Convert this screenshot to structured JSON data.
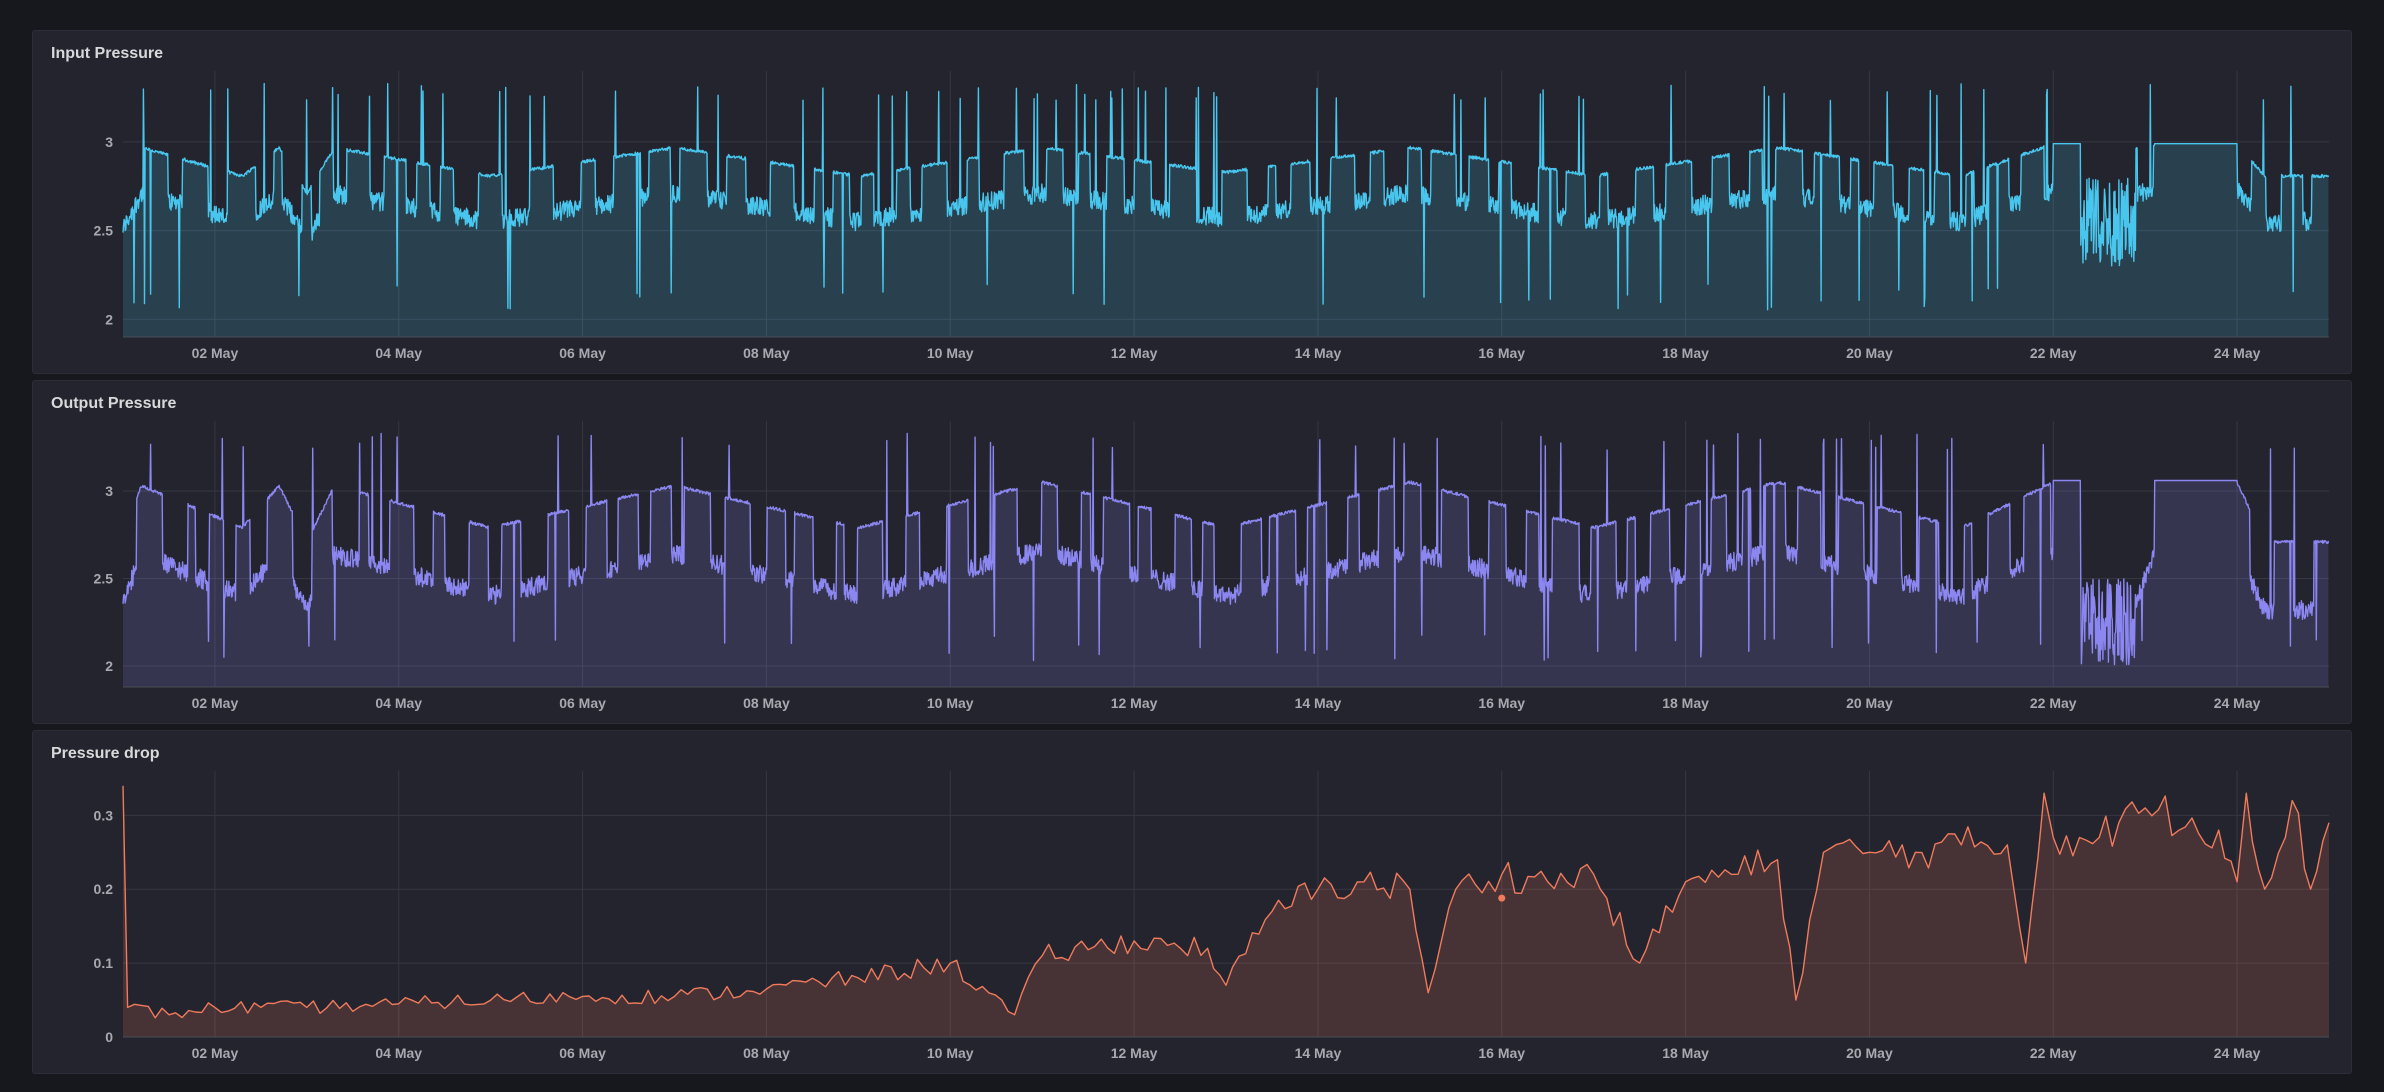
{
  "colors": {
    "background": "#17181d",
    "panel": "#23242d",
    "grid": "#363742",
    "input": "#48c6ee",
    "output": "#8b86f0",
    "drop": "#f07a5c"
  },
  "chart_data": [
    {
      "type": "line",
      "title": "Input Pressure",
      "x_ticks": [
        "02 May",
        "04 May",
        "06 May",
        "08 May",
        "10 May",
        "12 May",
        "14 May",
        "16 May",
        "18 May",
        "20 May",
        "22 May",
        "24 May"
      ],
      "y_ticks": [
        "2",
        "2.5",
        "3"
      ],
      "ylim": [
        1.9,
        3.4
      ],
      "xlim_days": [
        1.0,
        25.0
      ],
      "fill": true,
      "series": [
        {
          "color": "#48c6ee",
          "profile": "square-wave oscillation between ~2.5 and ~3.0 with spikes to ~3.3 and dips to ~2.0",
          "anchors": [
            [
              1.0,
              2.45
            ],
            [
              1.2,
              2.95
            ],
            [
              2.3,
              2.55
            ],
            [
              2.7,
              2.95
            ],
            [
              3.0,
              2.3
            ],
            [
              3.3,
              2.95
            ],
            [
              5.0,
              2.55
            ],
            [
              7.0,
              2.95
            ],
            [
              9.0,
              2.55
            ],
            [
              11.0,
              2.95
            ],
            [
              13.0,
              2.6
            ],
            [
              15.0,
              2.95
            ],
            [
              17.0,
              2.55
            ],
            [
              19.0,
              2.95
            ],
            [
              21.0,
              2.55
            ],
            [
              22.0,
              3.0
            ],
            [
              22.4,
              2.3
            ],
            [
              22.9,
              2.95
            ],
            [
              23.1,
              3.0
            ],
            [
              24.0,
              3.0
            ],
            [
              24.3,
              2.55
            ],
            [
              25.0,
              2.55
            ]
          ]
        }
      ]
    },
    {
      "type": "line",
      "title": "Output Pressure",
      "x_ticks": [
        "02 May",
        "04 May",
        "06 May",
        "08 May",
        "10 May",
        "12 May",
        "14 May",
        "16 May",
        "18 May",
        "20 May",
        "22 May",
        "24 May"
      ],
      "y_ticks": [
        "2",
        "2.5",
        "3"
      ],
      "ylim": [
        1.88,
        3.4
      ],
      "xlim_days": [
        1.0,
        25.0
      ],
      "fill": true,
      "series": [
        {
          "color": "#8b86f0",
          "profile": "square-wave oscillation between ~2.3 and ~3.05 with spikes to ~3.35 and dips to ~1.95",
          "anchors": [
            [
              1.0,
              2.3
            ],
            [
              1.2,
              3.0
            ],
            [
              2.3,
              2.4
            ],
            [
              2.7,
              3.0
            ],
            [
              3.0,
              2.2
            ],
            [
              3.3,
              3.0
            ],
            [
              5.0,
              2.4
            ],
            [
              7.0,
              3.0
            ],
            [
              9.0,
              2.4
            ],
            [
              11.0,
              3.05
            ],
            [
              13.0,
              2.4
            ],
            [
              15.0,
              3.05
            ],
            [
              17.0,
              2.4
            ],
            [
              19.0,
              3.05
            ],
            [
              21.0,
              2.4
            ],
            [
              22.0,
              3.05
            ],
            [
              22.4,
              2.0
            ],
            [
              22.9,
              2.3
            ],
            [
              23.1,
              3.05
            ],
            [
              24.0,
              3.05
            ],
            [
              24.3,
              2.2
            ],
            [
              25.0,
              2.2
            ]
          ]
        }
      ]
    },
    {
      "type": "area",
      "title": "Pressure drop",
      "x_ticks": [
        "02 May",
        "04 May",
        "06 May",
        "08 May",
        "10 May",
        "12 May",
        "14 May",
        "16 May",
        "18 May",
        "20 May",
        "22 May",
        "24 May"
      ],
      "y_ticks": [
        "0",
        "0.1",
        "0.2",
        "0.3"
      ],
      "ylim": [
        0,
        0.36
      ],
      "xlim_days": [
        1.0,
        25.0
      ],
      "fill": true,
      "series": [
        {
          "color": "#f07a5c",
          "points": [
            [
              1.0,
              0.34
            ],
            [
              1.05,
              0.04
            ],
            [
              1.5,
              0.03
            ],
            [
              2.0,
              0.04
            ],
            [
              3.0,
              0.04
            ],
            [
              4.0,
              0.045
            ],
            [
              5.0,
              0.05
            ],
            [
              6.0,
              0.055
            ],
            [
              7.0,
              0.055
            ],
            [
              8.0,
              0.065
            ],
            [
              9.0,
              0.08
            ],
            [
              10.0,
              0.1
            ],
            [
              10.7,
              0.03
            ],
            [
              11.0,
              0.11
            ],
            [
              12.0,
              0.13
            ],
            [
              12.8,
              0.12
            ],
            [
              13.0,
              0.07
            ],
            [
              13.5,
              0.17
            ],
            [
              14.0,
              0.2
            ],
            [
              14.5,
              0.21
            ],
            [
              15.0,
              0.2
            ],
            [
              15.2,
              0.06
            ],
            [
              15.5,
              0.2
            ],
            [
              16.0,
              0.22
            ],
            [
              16.5,
              0.21
            ],
            [
              17.0,
              0.22
            ],
            [
              17.5,
              0.1
            ],
            [
              18.0,
              0.21
            ],
            [
              18.5,
              0.22
            ],
            [
              19.0,
              0.24
            ],
            [
              19.2,
              0.05
            ],
            [
              19.5,
              0.25
            ],
            [
              20.0,
              0.25
            ],
            [
              20.5,
              0.25
            ],
            [
              21.0,
              0.26
            ],
            [
              21.5,
              0.26
            ],
            [
              21.7,
              0.1
            ],
            [
              21.9,
              0.33
            ],
            [
              22.0,
              0.27
            ],
            [
              22.5,
              0.27
            ],
            [
              23.0,
              0.31
            ],
            [
              23.8,
              0.28
            ],
            [
              24.0,
              0.21
            ],
            [
              24.1,
              0.33
            ],
            [
              24.3,
              0.2
            ],
            [
              24.6,
              0.32
            ],
            [
              24.8,
              0.2
            ],
            [
              25.0,
              0.29
            ]
          ]
        }
      ]
    }
  ]
}
